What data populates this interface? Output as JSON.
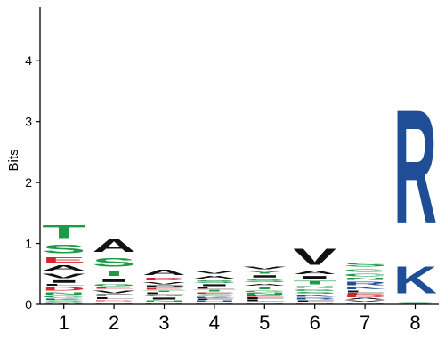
{
  "colors": {
    "green": "#1e9a47",
    "red": "#d8232a",
    "black": "#111111",
    "blue": "#1f4e96",
    "pink": "#d26b9f",
    "axis": "#000000"
  },
  "residue_groups": {
    "green": [
      "T",
      "S",
      "G",
      "Y",
      "N",
      "Q",
      "C"
    ],
    "red": [
      "E",
      "D"
    ],
    "blue": [
      "K",
      "R",
      "H"
    ],
    "pink": [
      "M"
    ],
    "black": [
      "A",
      "V",
      "I",
      "L",
      "F",
      "P",
      "W"
    ]
  },
  "chart_data": {
    "type": "sequence_logo",
    "title": "",
    "xlabel": "",
    "ylabel": "Bits",
    "ylim": [
      0,
      4.5
    ],
    "yticks": [
      "0",
      "1",
      "2",
      "3",
      "4"
    ],
    "positions": [
      {
        "label": "1",
        "stack": [
          {
            "letter": "M",
            "bits": 0.03
          },
          {
            "letter": "S",
            "bits": 0.04
          },
          {
            "letter": "K",
            "bits": 0.03
          },
          {
            "letter": "G",
            "bits": 0.05
          },
          {
            "letter": "N",
            "bits": 0.06
          },
          {
            "letter": "D",
            "bits": 0.09
          },
          {
            "letter": "L",
            "bits": 0.04
          },
          {
            "letter": "I",
            "bits": 0.07
          },
          {
            "letter": "V",
            "bits": 0.12
          },
          {
            "letter": "A",
            "bits": 0.13
          },
          {
            "letter": "E",
            "bits": 0.14
          },
          {
            "letter": "S",
            "bits": 0.22
          },
          {
            "letter": "T",
            "bits": 0.35
          }
        ]
      },
      {
        "label": "2",
        "stack": [
          {
            "letter": "M",
            "bits": 0.02
          },
          {
            "letter": "K",
            "bits": 0.02
          },
          {
            "letter": "N",
            "bits": 0.02
          },
          {
            "letter": "D",
            "bits": 0.02
          },
          {
            "letter": "L",
            "bits": 0.05
          },
          {
            "letter": "P",
            "bits": 0.04
          },
          {
            "letter": "V",
            "bits": 0.08
          },
          {
            "letter": "E",
            "bits": 0.04
          },
          {
            "letter": "G",
            "bits": 0.06
          },
          {
            "letter": "I",
            "bits": 0.09
          },
          {
            "letter": "T",
            "bits": 0.14
          },
          {
            "letter": "S",
            "bits": 0.22
          },
          {
            "letter": "A",
            "bits": 0.33
          }
        ]
      },
      {
        "label": "3",
        "stack": [
          {
            "letter": "M",
            "bits": 0.02
          },
          {
            "letter": "K",
            "bits": 0.02
          },
          {
            "letter": "N",
            "bits": 0.03
          },
          {
            "letter": "I",
            "bits": 0.05
          },
          {
            "letter": "G",
            "bits": 0.04
          },
          {
            "letter": "L",
            "bits": 0.04
          },
          {
            "letter": "T",
            "bits": 0.03
          },
          {
            "letter": "E",
            "bits": 0.05
          },
          {
            "letter": "P",
            "bits": 0.04
          },
          {
            "letter": "V",
            "bits": 0.06
          },
          {
            "letter": "D",
            "bits": 0.08
          },
          {
            "letter": "A",
            "bits": 0.13
          }
        ]
      },
      {
        "label": "4",
        "stack": [
          {
            "letter": "M",
            "bits": 0.02
          },
          {
            "letter": "N",
            "bits": 0.02
          },
          {
            "letter": "H",
            "bits": 0.03
          },
          {
            "letter": "F",
            "bits": 0.03
          },
          {
            "letter": "K",
            "bits": 0.03
          },
          {
            "letter": "G",
            "bits": 0.04
          },
          {
            "letter": "E",
            "bits": 0.03
          },
          {
            "letter": "T",
            "bits": 0.05
          },
          {
            "letter": "L",
            "bits": 0.04
          },
          {
            "letter": "I",
            "bits": 0.05
          },
          {
            "letter": "S",
            "bits": 0.07
          },
          {
            "letter": "A",
            "bits": 0.08
          },
          {
            "letter": "V",
            "bits": 0.08
          }
        ]
      },
      {
        "label": "5",
        "stack": [
          {
            "letter": "M",
            "bits": 0.02
          },
          {
            "letter": "K",
            "bits": 0.02
          },
          {
            "letter": "L",
            "bits": 0.04
          },
          {
            "letter": "F",
            "bits": 0.04
          },
          {
            "letter": "E",
            "bits": 0.03
          },
          {
            "letter": "N",
            "bits": 0.04
          },
          {
            "letter": "G",
            "bits": 0.05
          },
          {
            "letter": "T",
            "bits": 0.06
          },
          {
            "letter": "A",
            "bits": 0.05
          },
          {
            "letter": "S",
            "bits": 0.08
          },
          {
            "letter": "I",
            "bits": 0.06
          },
          {
            "letter": "Y",
            "bits": 0.07
          },
          {
            "letter": "V",
            "bits": 0.08
          }
        ]
      },
      {
        "label": "6",
        "stack": [
          {
            "letter": "M",
            "bits": 0.02
          },
          {
            "letter": "E",
            "bits": 0.02
          },
          {
            "letter": "F",
            "bits": 0.03
          },
          {
            "letter": "R",
            "bits": 0.04
          },
          {
            "letter": "K",
            "bits": 0.06
          },
          {
            "letter": "S",
            "bits": 0.04
          },
          {
            "letter": "G",
            "bits": 0.05
          },
          {
            "letter": "N",
            "bits": 0.05
          },
          {
            "letter": "T",
            "bits": 0.09
          },
          {
            "letter": "I",
            "bits": 0.08
          },
          {
            "letter": "A",
            "bits": 0.09
          },
          {
            "letter": "V",
            "bits": 0.42
          }
        ]
      },
      {
        "label": "7",
        "stack": [
          {
            "letter": "M",
            "bits": 0.02
          },
          {
            "letter": "T",
            "bits": 0.02
          },
          {
            "letter": "V",
            "bits": 0.03
          },
          {
            "letter": "A",
            "bits": 0.04
          },
          {
            "letter": "D",
            "bits": 0.04
          },
          {
            "letter": "E",
            "bits": 0.04
          },
          {
            "letter": "L",
            "bits": 0.05
          },
          {
            "letter": "K",
            "bits": 0.06
          },
          {
            "letter": "R",
            "bits": 0.09
          },
          {
            "letter": "N",
            "bits": 0.06
          },
          {
            "letter": "C",
            "bits": 0.07
          },
          {
            "letter": "G",
            "bits": 0.08
          },
          {
            "letter": "S",
            "bits": 0.1
          }
        ]
      },
      {
        "label": "8",
        "stack": [
          {
            "letter": "Q",
            "bits": 0.04
          },
          {
            "letter": "K",
            "bits": 0.72
          },
          {
            "letter": "R",
            "bits": 2.98
          }
        ]
      }
    ]
  }
}
